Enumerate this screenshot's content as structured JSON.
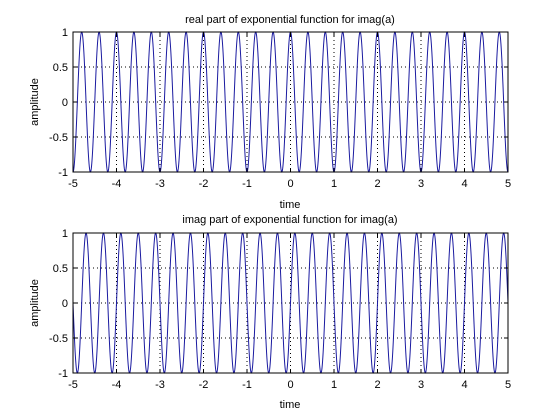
{
  "colors": {
    "line": "#1a1aa0",
    "axis": "#000000",
    "grid": "#000000",
    "background": "#ffffff"
  },
  "chart_data": [
    {
      "type": "line",
      "title": "real part of exponential function for imag(a)",
      "xlabel": "time",
      "ylabel": "amplitude",
      "xlim": [
        -5,
        5
      ],
      "ylim": [
        -1,
        1
      ],
      "xticks": [
        "-5",
        "-4",
        "-3",
        "-2",
        "-1",
        "0",
        "1",
        "2",
        "3",
        "4",
        "5"
      ],
      "yticks": [
        "-1",
        "-0.5",
        "0",
        "0.5",
        "1"
      ],
      "grid": true,
      "function": "cos",
      "frequency_hz": 2.5,
      "amplitude": 1
    },
    {
      "type": "line",
      "title": "imag part of exponential function for imag(a)",
      "xlabel": "time",
      "ylabel": "amplitude",
      "xlim": [
        -5,
        5
      ],
      "ylim": [
        -1,
        1
      ],
      "xticks": [
        "-5",
        "-4",
        "-3",
        "-2",
        "-1",
        "0",
        "1",
        "2",
        "3",
        "4",
        "5"
      ],
      "yticks": [
        "-1",
        "-0.5",
        "0",
        "0.5",
        "1"
      ],
      "grid": true,
      "function": "sin",
      "frequency_hz": 2.5,
      "amplitude": 1
    }
  ]
}
